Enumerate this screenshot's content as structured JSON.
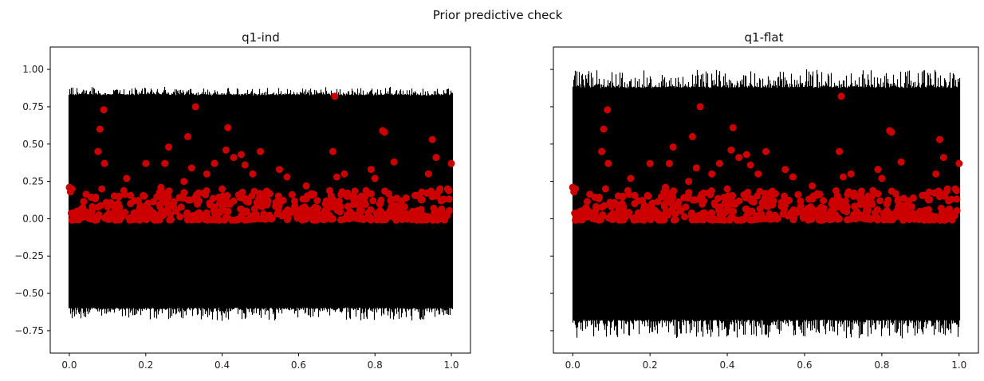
{
  "figure": {
    "suptitle": "Prior predictive check"
  },
  "colors": {
    "band": "#000000",
    "point": "#cc0000",
    "axis": "#000000",
    "background": "#ffffff"
  },
  "chart_data": [
    {
      "type": "scatter",
      "title": "q1-ind",
      "xlim": [
        -0.05,
        1.05
      ],
      "ylim": [
        -0.9,
        1.15
      ],
      "x_ticks": [
        0.0,
        0.2,
        0.4,
        0.6,
        0.8,
        1.0
      ],
      "x_tick_labels": [
        "0.0",
        "0.2",
        "0.4",
        "0.6",
        "0.8",
        "1.0"
      ],
      "y_ticks": [
        -0.75,
        -0.5,
        -0.25,
        0.0,
        0.25,
        0.5,
        0.75,
        1.0
      ],
      "y_tick_labels": [
        "−0.75",
        "−0.50",
        "−0.25",
        "0.00",
        "0.25",
        "0.50",
        "0.75",
        "1.00"
      ],
      "show_y_tick_labels": true,
      "band": {
        "x_range": [
          0.0,
          1.0
        ],
        "lower_typical": -0.6,
        "upper_typical": 0.83,
        "lower_extreme": -0.68,
        "upper_extreme": 0.88
      },
      "points": [
        [
          0.0,
          0.21
        ],
        [
          0.003,
          0.18
        ],
        [
          0.007,
          0.2
        ],
        [
          0.02,
          0.05
        ],
        [
          0.03,
          0.02
        ],
        [
          0.05,
          0.03
        ],
        [
          0.06,
          0.08
        ],
        [
          0.075,
          0.45
        ],
        [
          0.08,
          0.6
        ],
        [
          0.085,
          0.2
        ],
        [
          0.09,
          0.73
        ],
        [
          0.092,
          0.37
        ],
        [
          0.1,
          0.08
        ],
        [
          0.12,
          0.06
        ],
        [
          0.13,
          0.15
        ],
        [
          0.15,
          0.27
        ],
        [
          0.17,
          0.12
        ],
        [
          0.2,
          0.37
        ],
        [
          0.21,
          0.05
        ],
        [
          0.24,
          0.21
        ],
        [
          0.25,
          0.37
        ],
        [
          0.26,
          0.48
        ],
        [
          0.28,
          0.05
        ],
        [
          0.3,
          0.25
        ],
        [
          0.31,
          0.55
        ],
        [
          0.32,
          0.34
        ],
        [
          0.33,
          0.75
        ],
        [
          0.34,
          0.04
        ],
        [
          0.36,
          0.3
        ],
        [
          0.38,
          0.37
        ],
        [
          0.4,
          0.2
        ],
        [
          0.41,
          0.46
        ],
        [
          0.415,
          0.61
        ],
        [
          0.43,
          0.41
        ],
        [
          0.45,
          0.43
        ],
        [
          0.46,
          0.36
        ],
        [
          0.48,
          0.3
        ],
        [
          0.5,
          0.45
        ],
        [
          0.52,
          0.12
        ],
        [
          0.55,
          0.33
        ],
        [
          0.57,
          0.28
        ],
        [
          0.6,
          0.05
        ],
        [
          0.62,
          0.22
        ],
        [
          0.65,
          0.07
        ],
        [
          0.67,
          0.1
        ],
        [
          0.69,
          0.45
        ],
        [
          0.695,
          0.82
        ],
        [
          0.7,
          0.28
        ],
        [
          0.72,
          0.3
        ],
        [
          0.74,
          0.15
        ],
        [
          0.76,
          0.05
        ],
        [
          0.79,
          0.33
        ],
        [
          0.8,
          0.27
        ],
        [
          0.82,
          0.59
        ],
        [
          0.825,
          0.58
        ],
        [
          0.85,
          0.38
        ],
        [
          0.87,
          0.12
        ],
        [
          0.9,
          0.02
        ],
        [
          0.92,
          0.05
        ],
        [
          0.94,
          0.3
        ],
        [
          0.95,
          0.53
        ],
        [
          0.96,
          0.41
        ],
        [
          0.97,
          0.2
        ],
        [
          0.98,
          0.13
        ],
        [
          0.99,
          0.2
        ],
        [
          1.0,
          0.37
        ]
      ]
    },
    {
      "type": "scatter",
      "title": "q1-flat",
      "xlim": [
        -0.05,
        1.05
      ],
      "ylim": [
        -0.9,
        1.15
      ],
      "x_ticks": [
        0.0,
        0.2,
        0.4,
        0.6,
        0.8,
        1.0
      ],
      "x_tick_labels": [
        "0.0",
        "0.2",
        "0.4",
        "0.6",
        "0.8",
        "1.0"
      ],
      "y_ticks": [
        -0.75,
        -0.5,
        -0.25,
        0.0,
        0.25,
        0.5,
        0.75,
        1.0
      ],
      "y_tick_labels": [],
      "show_y_tick_labels": false,
      "band": {
        "x_range": [
          0.0,
          1.0
        ],
        "lower_typical": -0.68,
        "upper_typical": 0.88,
        "lower_extreme": -0.8,
        "upper_extreme": 1.0
      },
      "points": [
        [
          0.0,
          0.21
        ],
        [
          0.003,
          0.18
        ],
        [
          0.007,
          0.2
        ],
        [
          0.02,
          0.05
        ],
        [
          0.03,
          0.02
        ],
        [
          0.05,
          0.03
        ],
        [
          0.06,
          0.08
        ],
        [
          0.075,
          0.45
        ],
        [
          0.08,
          0.6
        ],
        [
          0.085,
          0.2
        ],
        [
          0.09,
          0.73
        ],
        [
          0.092,
          0.37
        ],
        [
          0.1,
          0.08
        ],
        [
          0.12,
          0.06
        ],
        [
          0.13,
          0.15
        ],
        [
          0.15,
          0.27
        ],
        [
          0.17,
          0.12
        ],
        [
          0.2,
          0.37
        ],
        [
          0.21,
          0.05
        ],
        [
          0.24,
          0.21
        ],
        [
          0.25,
          0.37
        ],
        [
          0.26,
          0.48
        ],
        [
          0.28,
          0.05
        ],
        [
          0.3,
          0.25
        ],
        [
          0.31,
          0.55
        ],
        [
          0.32,
          0.34
        ],
        [
          0.33,
          0.75
        ],
        [
          0.34,
          0.04
        ],
        [
          0.36,
          0.3
        ],
        [
          0.38,
          0.37
        ],
        [
          0.4,
          0.2
        ],
        [
          0.41,
          0.46
        ],
        [
          0.415,
          0.61
        ],
        [
          0.43,
          0.41
        ],
        [
          0.45,
          0.43
        ],
        [
          0.46,
          0.36
        ],
        [
          0.48,
          0.3
        ],
        [
          0.5,
          0.45
        ],
        [
          0.52,
          0.12
        ],
        [
          0.55,
          0.33
        ],
        [
          0.57,
          0.28
        ],
        [
          0.6,
          0.05
        ],
        [
          0.62,
          0.22
        ],
        [
          0.65,
          0.07
        ],
        [
          0.67,
          0.1
        ],
        [
          0.69,
          0.45
        ],
        [
          0.695,
          0.82
        ],
        [
          0.7,
          0.28
        ],
        [
          0.72,
          0.3
        ],
        [
          0.74,
          0.15
        ],
        [
          0.76,
          0.05
        ],
        [
          0.79,
          0.33
        ],
        [
          0.8,
          0.27
        ],
        [
          0.82,
          0.59
        ],
        [
          0.825,
          0.58
        ],
        [
          0.85,
          0.38
        ],
        [
          0.87,
          0.12
        ],
        [
          0.9,
          0.02
        ],
        [
          0.92,
          0.05
        ],
        [
          0.94,
          0.3
        ],
        [
          0.95,
          0.53
        ],
        [
          0.96,
          0.41
        ],
        [
          0.97,
          0.2
        ],
        [
          0.98,
          0.13
        ],
        [
          0.99,
          0.2
        ],
        [
          1.0,
          0.37
        ]
      ]
    }
  ]
}
